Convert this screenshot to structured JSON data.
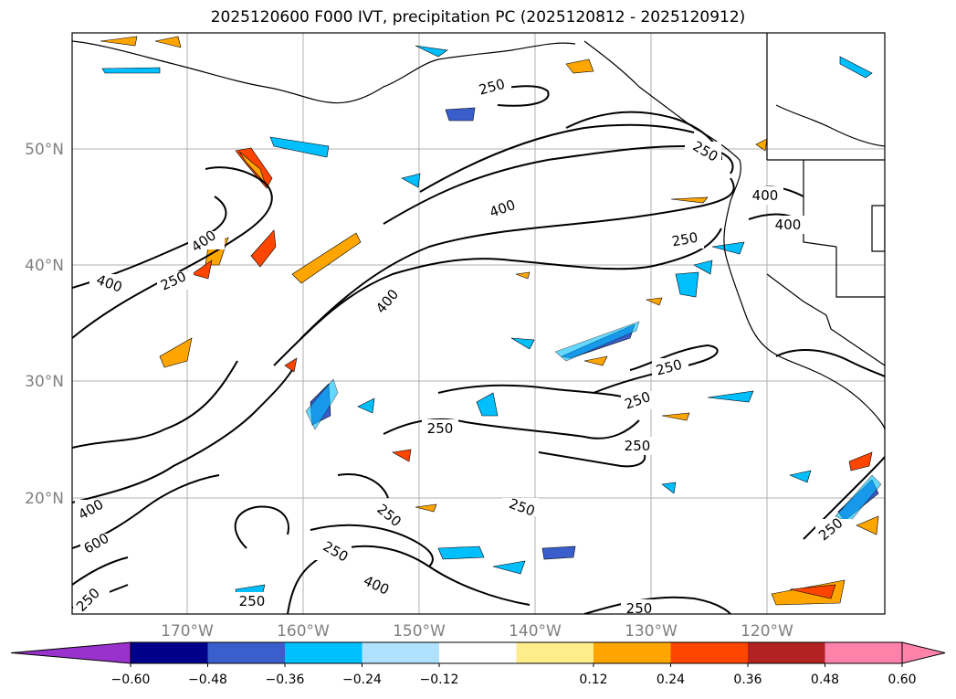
{
  "title": "2025120600 F000 IVT, precipitation PC (2025120812 - 2025120912)",
  "map": {
    "lat_labels": [
      "50°N",
      "40°N",
      "30°N",
      "20°N"
    ],
    "lon_labels": [
      "170°W",
      "160°W",
      "150°W",
      "140°W",
      "130°W",
      "120°W"
    ],
    "ivt_contour_labels": [
      "250",
      "400",
      "400",
      "250",
      "400",
      "400",
      "250",
      "250",
      "250",
      "250",
      "250",
      "400",
      "400",
      "250",
      "250",
      "400",
      "600",
      "250",
      "250",
      "250",
      "400",
      "250",
      "250",
      "250"
    ]
  },
  "colorbar": {
    "tick_labels": [
      "−0.60",
      "−0.48",
      "−0.36",
      "−0.24",
      "−0.12",
      "0.12",
      "0.24",
      "0.36",
      "0.48",
      "0.60"
    ],
    "colors": {
      "under": "#9932cc",
      "bins": [
        "#00008b",
        "#3a5fcd",
        "#00bfff",
        "#b0e2ff",
        "#ffffff",
        "#ffec8b",
        "#ffa500",
        "#ff4500",
        "#b22222",
        "#ff82ab"
      ]
    }
  }
}
